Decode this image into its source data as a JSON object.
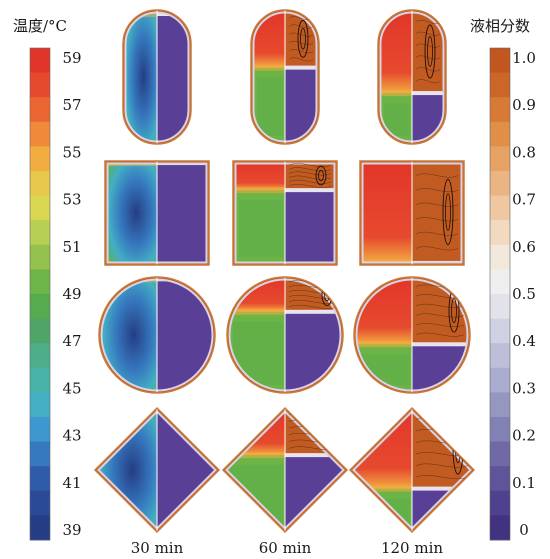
{
  "temperature_bar": {
    "title": "温度/°C",
    "ticks": [
      "59",
      "57",
      "55",
      "53",
      "51",
      "49",
      "47",
      "45",
      "43",
      "41",
      "39"
    ],
    "colors": [
      "#e2352a",
      "#e64a2e",
      "#ea6733",
      "#ef8a3b",
      "#f2ad41",
      "#e8c84a",
      "#d9d652",
      "#b8cf55",
      "#95c24f",
      "#6fb64a",
      "#55ab4e",
      "#4fa567",
      "#4fae8a",
      "#49b2a8",
      "#43aec4",
      "#3e98cf",
      "#3679bf",
      "#2f5ca9",
      "#2a4996",
      "#253d84"
    ]
  },
  "fraction_bar": {
    "title": "液相分数",
    "ticks": [
      "1.0",
      "0.9",
      "0.8",
      "0.7",
      "0.6",
      "0.5",
      "0.4",
      "0.3",
      "0.2",
      "0.1",
      "0"
    ],
    "colors": [
      "#c2561f",
      "#cb6628",
      "#d67a36",
      "#df8f48",
      "#e4a364",
      "#eab583",
      "#efc8a2",
      "#f2d9c0",
      "#f3e8dc",
      "#efefef",
      "#e2e3ea",
      "#cfd2e2",
      "#bdbfd8",
      "#a9acce",
      "#9597c1",
      "#8281b4",
      "#6f6aa6",
      "#5e5499",
      "#4f418d",
      "#43327f"
    ]
  },
  "columns": [
    "30 min",
    "60 min",
    "120 min"
  ],
  "rows": [
    "capsule",
    "square",
    "circle",
    "diamond"
  ],
  "melt_front": [
    [
      0.03,
      0.43,
      0.62
    ],
    [
      0.02,
      0.28,
      0.98
    ],
    [
      0.02,
      0.3,
      0.58
    ],
    [
      0.03,
      0.38,
      0.65
    ]
  ],
  "colors": {
    "liquid_hot": "#e03a2a",
    "warm_green": "#6cb446",
    "cool_blue": "#2a4996",
    "solid_purple": "#5a3f97",
    "liquid_orange": "#c25b22",
    "border": "#c87a3a"
  }
}
